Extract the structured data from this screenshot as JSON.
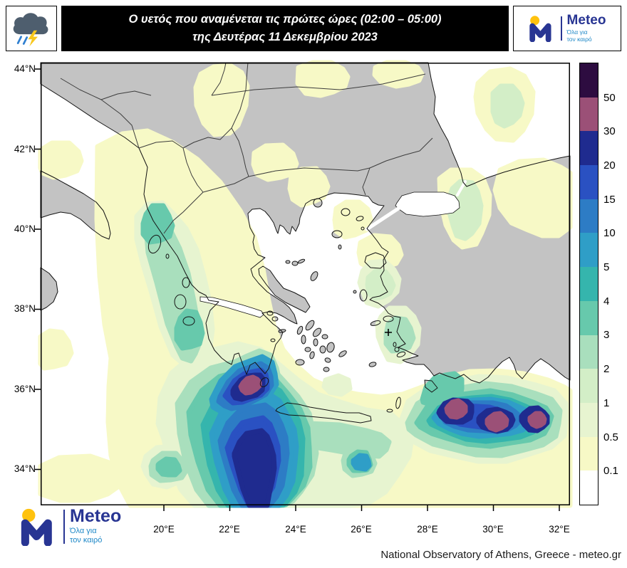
{
  "header": {
    "title_line1": "Ο υετός που αναμένεται τις πρώτες ώρες (02:00 – 05:00)",
    "title_line2": "της Δευτέρας 11 Δεκεμβρίου 2023"
  },
  "brand": {
    "name": "Meteo",
    "tagline1": "Όλα για",
    "tagline2": "τον καιρό"
  },
  "map": {
    "lat_labels": [
      "44°N",
      "42°N",
      "40°N",
      "38°N",
      "36°N",
      "34°N"
    ],
    "lon_labels": [
      "20°E",
      "22°E",
      "24°E",
      "26°E",
      "28°E",
      "30°E",
      "32°E"
    ]
  },
  "legend": {
    "labels": [
      "50",
      "30",
      "20",
      "15",
      "10",
      "5",
      "4",
      "3",
      "2",
      "1",
      "0.5",
      "0.1"
    ],
    "colors": [
      "#2d0c40",
      "#9b5077",
      "#1f2b8f",
      "#2a51c2",
      "#2d7cc5",
      "#2f9ec7",
      "#35b5ad",
      "#67c9ac",
      "#a9dfbd",
      "#d3eec7",
      "#e7f4d0",
      "#f7f9c6",
      "#ffffff"
    ]
  },
  "footer": {
    "attribution": "National Observatory of Athens, Greece - meteo.gr"
  }
}
